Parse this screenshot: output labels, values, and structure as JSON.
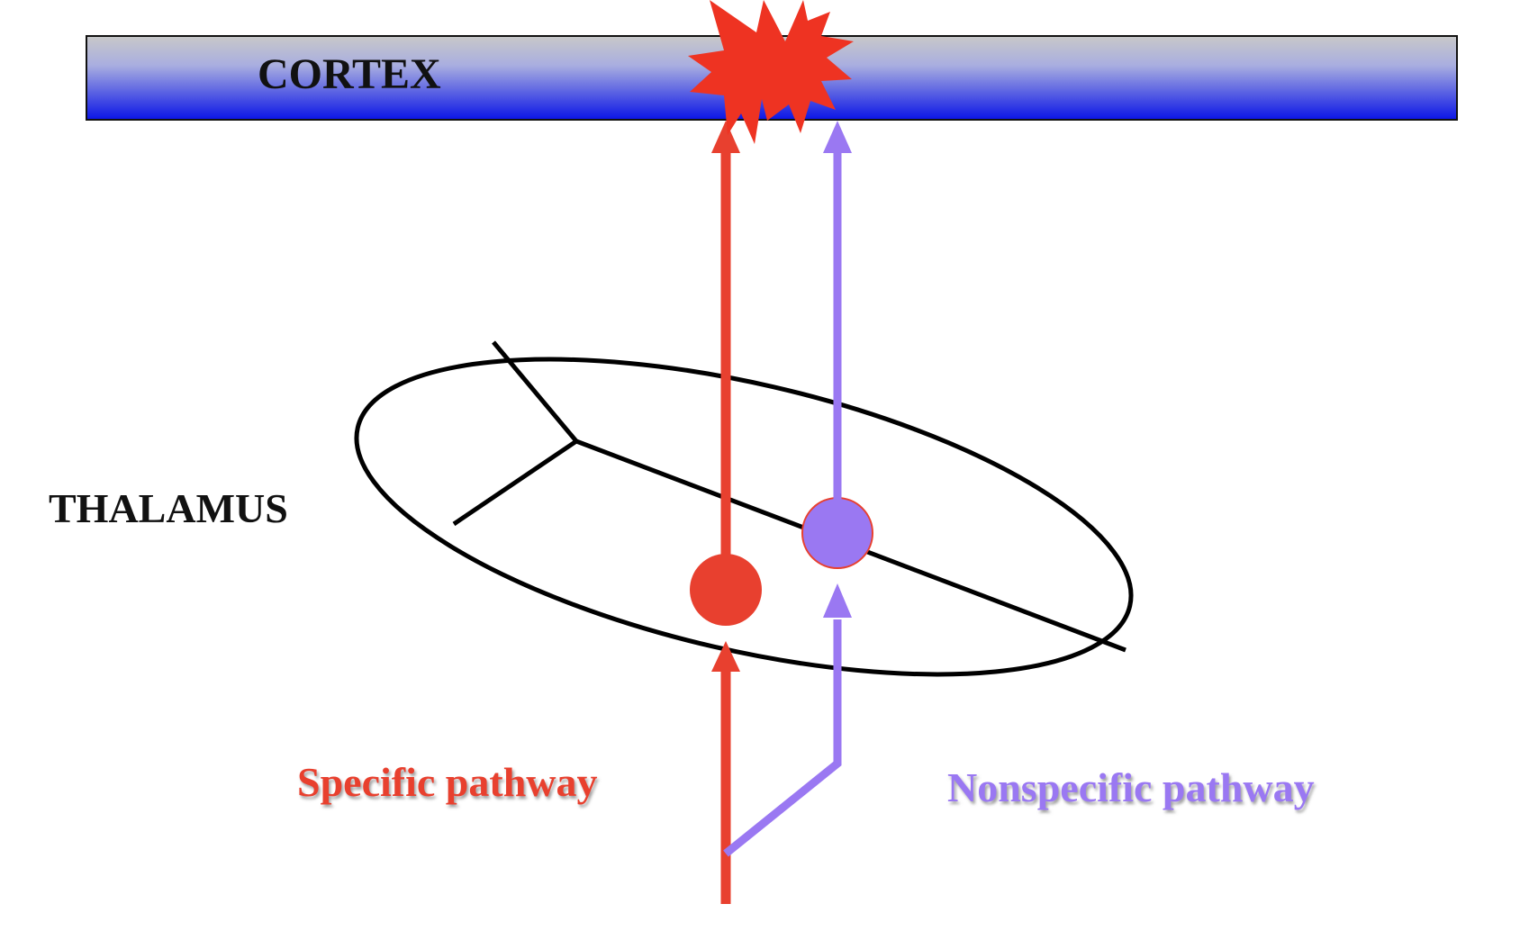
{
  "labels": {
    "cortex": "CORTEX",
    "thalamus": "THALAMUS",
    "specific_pathway": "Specific pathway",
    "nonspecific_pathway": "Nonspecific pathway"
  },
  "colors": {
    "cortex_top": "#c4c4c4",
    "cortex_bottom": "#0a12e0",
    "specific": "#e8402f",
    "nonspecific": "#9a78f2",
    "burst": "#ee3322",
    "outline": "#000000"
  }
}
